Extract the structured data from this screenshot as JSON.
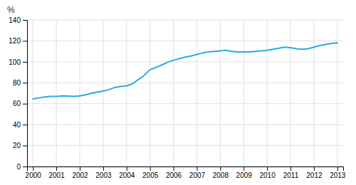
{
  "chart_data": {
    "type": "line",
    "ylabel": "%",
    "x": [
      2000,
      2000.25,
      2000.5,
      2000.75,
      2001,
      2001.25,
      2001.5,
      2001.75,
      2002,
      2002.25,
      2002.5,
      2002.75,
      2003,
      2003.25,
      2003.5,
      2003.75,
      2004,
      2004.25,
      2004.5,
      2004.75,
      2005,
      2005.25,
      2005.5,
      2005.75,
      2006,
      2006.25,
      2006.5,
      2006.75,
      2007,
      2007.25,
      2007.5,
      2007.75,
      2008,
      2008.25,
      2008.5,
      2008.75,
      2009,
      2009.25,
      2009.5,
      2009.75,
      2010,
      2010.25,
      2010.5,
      2010.75,
      2011,
      2011.25,
      2011.5,
      2011.75,
      2012,
      2012.25,
      2012.5,
      2012.75,
      2013
    ],
    "values": [
      64.5,
      65.5,
      66.5,
      67.0,
      67.0,
      67.5,
      67.3,
      67.0,
      67.5,
      68.5,
      70.0,
      71.0,
      72.0,
      73.5,
      75.5,
      76.5,
      77.0,
      79.0,
      83.0,
      87.0,
      92.5,
      94.5,
      97.0,
      99.5,
      101.5,
      103.0,
      104.5,
      105.5,
      107.0,
      108.5,
      109.5,
      110.0,
      110.5,
      111.0,
      110.0,
      109.5,
      109.5,
      109.5,
      110.0,
      110.5,
      111.0,
      112.0,
      113.0,
      114.0,
      113.5,
      112.5,
      112.0,
      112.5,
      114.0,
      115.5,
      116.5,
      117.5,
      118.0
    ],
    "color": "#29abe2",
    "xlim": [
      1999.75,
      2013.25
    ],
    "xticks": [
      2000,
      2001,
      2002,
      2003,
      2004,
      2005,
      2006,
      2007,
      2008,
      2009,
      2010,
      2011,
      2012,
      2013
    ],
    "ylim": [
      0,
      140
    ],
    "yticks": [
      0,
      20,
      40,
      60,
      80,
      100,
      120,
      140
    ],
    "grid": true
  }
}
